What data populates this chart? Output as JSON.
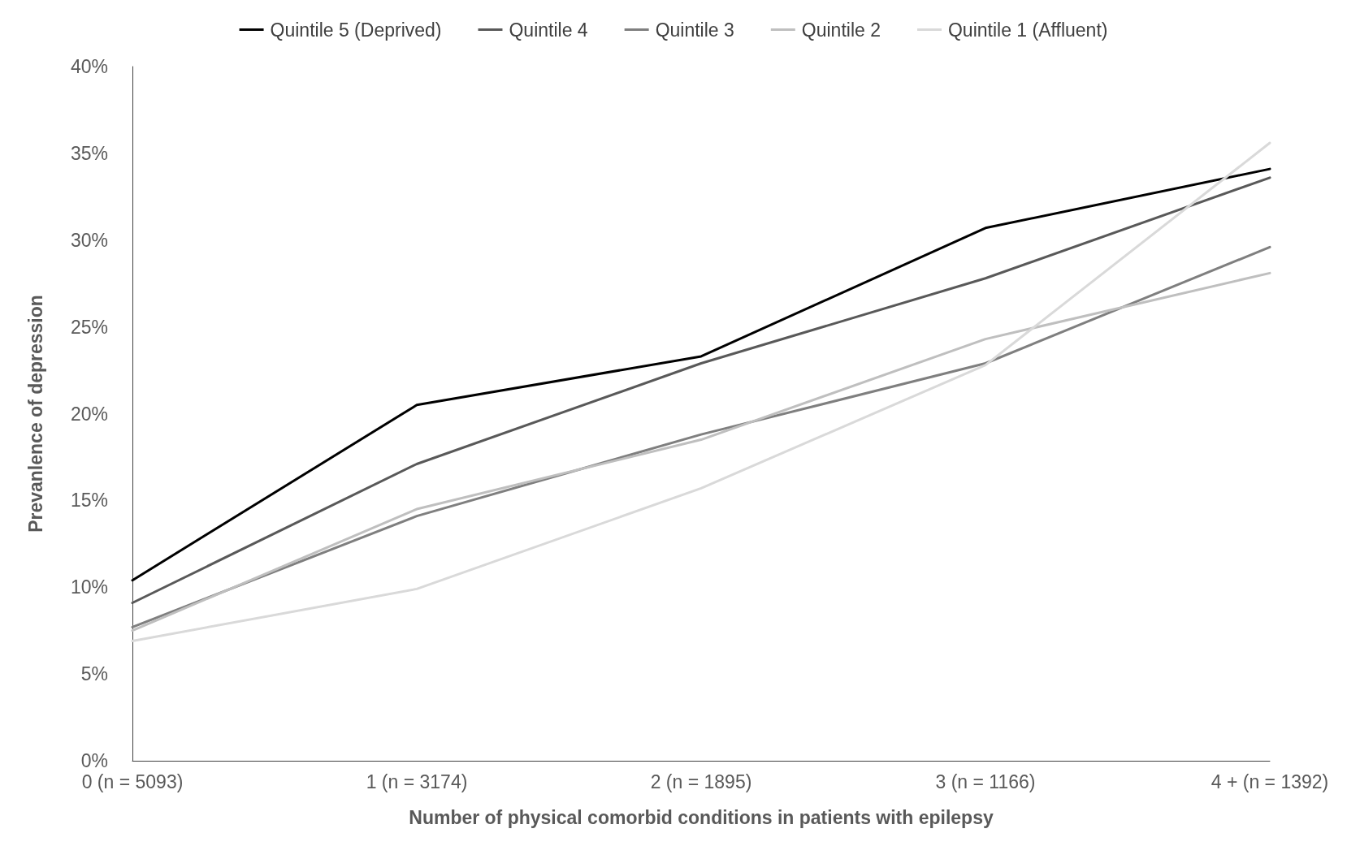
{
  "chart_data": {
    "type": "line",
    "xlabel": "Number of physical comorbid conditions in patients with epilepsy",
    "ylabel": "Prevanlence of depression",
    "categories": [
      "0 (n = 5093)",
      "1 (n = 3174)",
      "2 (n = 1895)",
      "3 (n = 1166)",
      "4 + (n = 1392)"
    ],
    "series": [
      {
        "name": "Quintile 5 (Deprived)",
        "color": "#000000",
        "values": [
          10.4,
          20.5,
          23.3,
          30.7,
          34.1
        ]
      },
      {
        "name": "Quintile 4",
        "color": "#595959",
        "values": [
          9.1,
          17.1,
          22.9,
          27.8,
          33.6
        ]
      },
      {
        "name": "Quintile 3",
        "color": "#7f7f7f",
        "values": [
          7.7,
          14.1,
          18.8,
          22.9,
          29.6
        ]
      },
      {
        "name": "Quintile 2",
        "color": "#bfbfbf",
        "values": [
          7.5,
          14.5,
          18.5,
          24.3,
          28.1
        ]
      },
      {
        "name": "Quintile 1 (Affluent)",
        "color": "#d9d9d9",
        "values": [
          6.9,
          9.9,
          15.7,
          22.8,
          35.6
        ]
      }
    ],
    "ylim": [
      0,
      40
    ],
    "yticks": [
      {
        "value": 0,
        "label": "0%"
      },
      {
        "value": 5,
        "label": "5%"
      },
      {
        "value": 10,
        "label": "10%"
      },
      {
        "value": 15,
        "label": "15%"
      },
      {
        "value": 20,
        "label": "20%"
      },
      {
        "value": 25,
        "label": "25%"
      },
      {
        "value": 30,
        "label": "30%"
      },
      {
        "value": 35,
        "label": "35%"
      },
      {
        "value": 40,
        "label": "40%"
      }
    ],
    "grid": false,
    "legend": "top",
    "marker": "none",
    "line_style": "solid"
  }
}
